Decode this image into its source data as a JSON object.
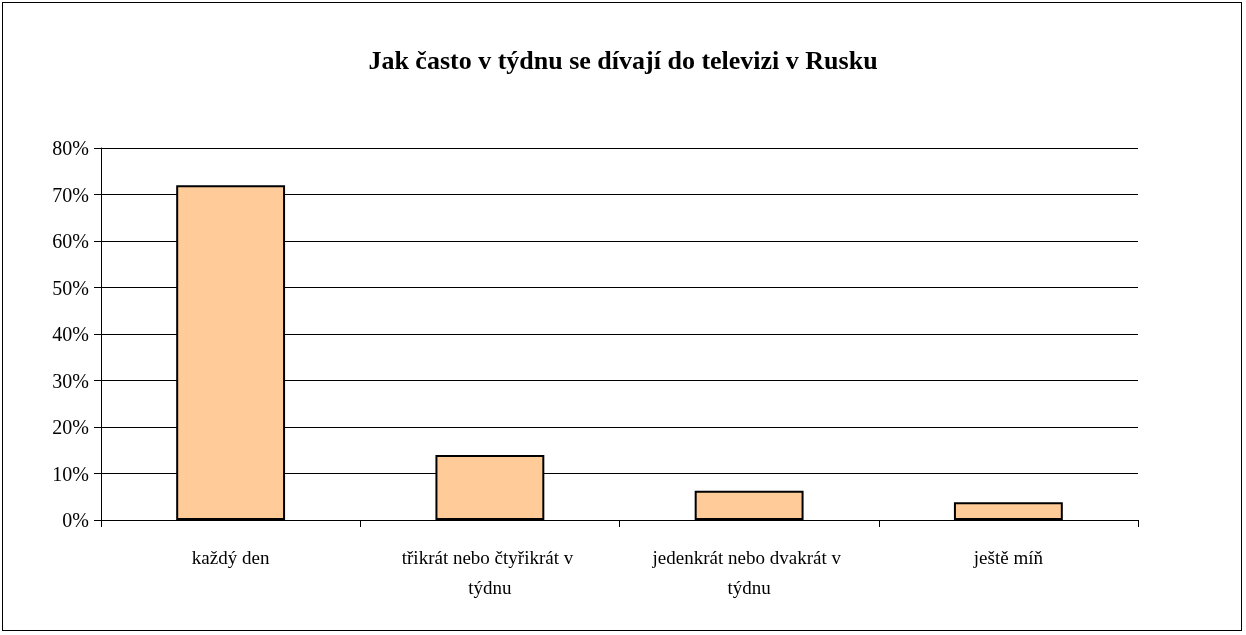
{
  "chart_data": {
    "type": "bar",
    "title": "Jak často v týdnu se dívají do televizi v Rusku",
    "categories": [
      "každý den",
      "třikrát nebo čtyřikrát v týdnu",
      "jedenkrát nebo dvakrát v týdnu",
      "ještě míň"
    ],
    "values": [
      72,
      14,
      6.3,
      3.8
    ],
    "color": "#ffcc99",
    "ylim": [
      0,
      80
    ],
    "yticks": [
      {
        "value": 0,
        "label": "0%"
      },
      {
        "value": 10,
        "label": "10%"
      },
      {
        "value": 20,
        "label": "20%"
      },
      {
        "value": 30,
        "label": "30%"
      },
      {
        "value": 40,
        "label": "40%"
      },
      {
        "value": 50,
        "label": "50%"
      },
      {
        "value": 60,
        "label": "60%"
      },
      {
        "value": 70,
        "label": "70%"
      },
      {
        "value": 80,
        "label": "80%"
      }
    ],
    "grid": "y"
  }
}
